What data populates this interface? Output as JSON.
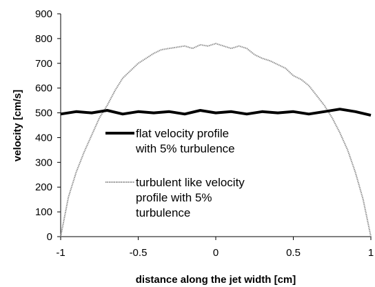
{
  "chart_data": {
    "type": "line",
    "title": "",
    "xlabel": "distance along the jet width [cm]",
    "ylabel": "velocity [cm/s]",
    "xlim": [
      -1,
      1
    ],
    "ylim": [
      0,
      900
    ],
    "x_ticks": [
      -1,
      -0.5,
      0,
      0.5,
      1
    ],
    "x_tick_labels": [
      "-1",
      "-0.5",
      "0",
      "0.5",
      "1"
    ],
    "y_ticks": [
      0,
      100,
      200,
      300,
      400,
      500,
      600,
      700,
      800,
      900
    ],
    "y_tick_labels": [
      "0",
      "100",
      "200",
      "300",
      "400",
      "500",
      "600",
      "700",
      "800",
      "900"
    ],
    "grid": false,
    "legend_placement": "center-left",
    "colors": {
      "flat": "#000000",
      "turbulent": "#8c8c8c"
    },
    "series": [
      {
        "key": "flat",
        "legend_lines": [
          "flat velocity profile",
          "with 5% turbulence"
        ],
        "x": [
          -1,
          -0.9,
          -0.8,
          -0.7,
          -0.6,
          -0.5,
          -0.4,
          -0.3,
          -0.2,
          -0.1,
          0,
          0.1,
          0.2,
          0.3,
          0.4,
          0.5,
          0.6,
          0.7,
          0.8,
          0.9,
          1
        ],
        "y": [
          495,
          505,
          500,
          510,
          495,
          505,
          500,
          505,
          495,
          510,
          500,
          505,
          495,
          505,
          500,
          505,
          495,
          505,
          515,
          505,
          490
        ]
      },
      {
        "key": "turbulent",
        "legend_lines": [
          "turbulent like velocity",
          "profile with 5%",
          "turbulence"
        ],
        "x": [
          -1,
          -0.95,
          -0.9,
          -0.85,
          -0.8,
          -0.75,
          -0.7,
          -0.65,
          -0.6,
          -0.55,
          -0.5,
          -0.45,
          -0.4,
          -0.35,
          -0.3,
          -0.25,
          -0.2,
          -0.15,
          -0.1,
          -0.05,
          0,
          0.05,
          0.1,
          0.15,
          0.2,
          0.25,
          0.3,
          0.35,
          0.4,
          0.45,
          0.5,
          0.55,
          0.6,
          0.65,
          0.7,
          0.75,
          0.8,
          0.85,
          0.9,
          0.95,
          1
        ],
        "y": [
          0,
          160,
          260,
          340,
          410,
          480,
          530,
          590,
          640,
          670,
          700,
          720,
          740,
          755,
          760,
          765,
          770,
          760,
          775,
          770,
          780,
          770,
          760,
          770,
          760,
          735,
          720,
          710,
          695,
          680,
          650,
          635,
          610,
          570,
          530,
          480,
          420,
          350,
          260,
          150,
          0
        ]
      }
    ]
  }
}
